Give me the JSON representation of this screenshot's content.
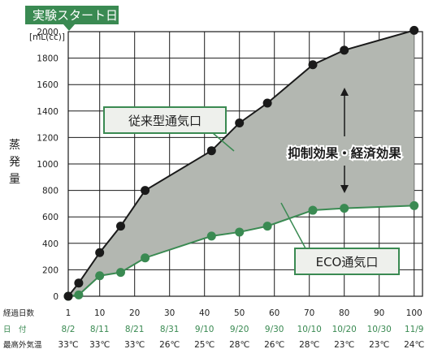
{
  "chart_data": {
    "type": "line",
    "title": "",
    "start_badge": "実験スタート日",
    "ylabel": "蒸発量",
    "yunit": "[mL(cc)]",
    "ylim": [
      0,
      2000
    ],
    "yticks": [
      0,
      200,
      400,
      600,
      800,
      1000,
      1200,
      1400,
      1600,
      1800,
      2000
    ],
    "xlim": [
      1,
      100
    ],
    "grid": true,
    "row_labels": {
      "days": "経過日数",
      "date": "日　付",
      "temp": "最高外気温"
    },
    "columns": [
      {
        "day": "1",
        "date": "8/2",
        "temp": "33℃"
      },
      {
        "day": "10",
        "date": "8/11",
        "temp": "33℃"
      },
      {
        "day": "20",
        "date": "8/21",
        "temp": "33℃"
      },
      {
        "day": "30",
        "date": "8/31",
        "temp": "26℃"
      },
      {
        "day": "40",
        "date": "9/10",
        "temp": "25℃"
      },
      {
        "day": "50",
        "date": "9/20",
        "temp": "28℃"
      },
      {
        "day": "60",
        "date": "9/30",
        "temp": "26℃"
      },
      {
        "day": "70",
        "date": "10/10",
        "temp": "28℃"
      },
      {
        "day": "80",
        "date": "10/20",
        "temp": "23℃"
      },
      {
        "day": "90",
        "date": "10/30",
        "temp": "23℃"
      },
      {
        "day": "100",
        "date": "11/9",
        "temp": "24℃"
      }
    ],
    "series": [
      {
        "name": "従来型通気口",
        "color": "#1a1a1a",
        "points": [
          [
            1,
            0
          ],
          [
            4,
            100
          ],
          [
            10,
            330
          ],
          [
            16,
            530
          ],
          [
            23,
            800
          ],
          [
            42,
            1100
          ],
          [
            50,
            1310
          ],
          [
            58,
            1460
          ],
          [
            71,
            1750
          ],
          [
            80,
            1860
          ],
          [
            100,
            2010
          ]
        ]
      },
      {
        "name": "ECO通気口",
        "color": "#3a8a52",
        "points": [
          [
            1,
            0
          ],
          [
            4,
            10
          ],
          [
            10,
            155
          ],
          [
            16,
            180
          ],
          [
            23,
            290
          ],
          [
            42,
            455
          ],
          [
            50,
            485
          ],
          [
            58,
            530
          ],
          [
            71,
            650
          ],
          [
            80,
            665
          ],
          [
            100,
            685
          ]
        ]
      }
    ],
    "fill_between_color": "#b3b7b1",
    "annotation": "抑制効果・経済効果"
  }
}
